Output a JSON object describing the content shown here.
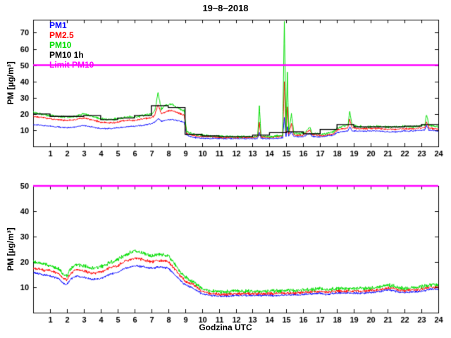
{
  "title": "19–8–2018",
  "xlabel": "Godzina UTC",
  "ylabel": "PM [µg/m³]",
  "legend": [
    {
      "label": "PM1",
      "color": "#0000ff"
    },
    {
      "label": "PM2.5",
      "color": "#ff0000"
    },
    {
      "label": "PM10",
      "color": "#00dd00"
    },
    {
      "label": "PM10 1h",
      "color": "#000000"
    },
    {
      "label": "Limit PM10",
      "color": "#ff00ff"
    }
  ],
  "chart_data": [
    {
      "type": "line",
      "title": "19–8–2018",
      "xlabel": "",
      "ylabel": "PM [µg/m³]",
      "xlim": [
        0,
        24
      ],
      "ylim": [
        0,
        78
      ],
      "xticks": [
        1,
        2,
        3,
        4,
        5,
        6,
        7,
        8,
        9,
        10,
        11,
        12,
        13,
        14,
        15,
        16,
        17,
        18,
        19,
        20,
        21,
        22,
        23,
        24
      ],
      "yticks": [
        10,
        20,
        30,
        40,
        50,
        60,
        70
      ],
      "limit": 50,
      "limit_color": "#ff00ff",
      "seed": 11,
      "x": [
        0,
        0.5,
        1,
        1.5,
        2,
        2.5,
        3,
        3.5,
        4,
        4.5,
        5,
        5.5,
        6,
        6.5,
        7,
        7.2,
        7.4,
        7.6,
        7.8,
        8,
        8.25,
        8.5,
        8.75,
        8.95,
        9.1,
        9.5,
        10,
        10.5,
        11,
        11.5,
        12,
        12.5,
        13,
        13.3,
        13.4,
        13.5,
        14,
        14.5,
        14.78,
        14.88,
        14.98,
        15.06,
        15.14,
        15.3,
        15.45,
        15.6,
        16,
        16.4,
        16.55,
        16.7,
        17,
        17.4,
        17.8,
        18,
        18.3,
        18.65,
        18.75,
        18.9,
        19.2,
        19.6,
        20,
        20.5,
        21,
        21.5,
        22,
        22.5,
        23,
        23.2,
        23.3,
        23.45,
        24
      ],
      "series": [
        {
          "name": "PM1",
          "color": "#0000ff",
          "noise": 0.5,
          "y": [
            13.5,
            13,
            12.5,
            12,
            11.5,
            12,
            13,
            12,
            11,
            11,
            11.5,
            12,
            12.5,
            13,
            14,
            15,
            17,
            15.5,
            16,
            16.5,
            16.5,
            16,
            15.5,
            15,
            7,
            5.5,
            5,
            5,
            5,
            4.8,
            4.8,
            4.8,
            4.8,
            5,
            9,
            5,
            4.8,
            5,
            5.5,
            18,
            6.5,
            12,
            6.5,
            9,
            6,
            6,
            6,
            8,
            6,
            6,
            5.8,
            6.5,
            7,
            8.5,
            9,
            9.5,
            12,
            9.5,
            9.5,
            9.5,
            9.5,
            9.5,
            9,
            9,
            9.5,
            9.5,
            10,
            10,
            13,
            10,
            9.5
          ]
        },
        {
          "name": "PM2.5",
          "color": "#ff0000",
          "noise": 0.7,
          "y": [
            18.5,
            18,
            17,
            16.5,
            16,
            16.5,
            17.5,
            16.5,
            15,
            14.5,
            15,
            16,
            16,
            17,
            17.5,
            19,
            26,
            20,
            21,
            22,
            22,
            21,
            20,
            19,
            8,
            6.5,
            6,
            6,
            5.5,
            5.5,
            5.5,
            5.5,
            5.5,
            6,
            15,
            6,
            5.5,
            6,
            6.5,
            40,
            8,
            25,
            8,
            14,
            7,
            7,
            7,
            10,
            7,
            7,
            6.5,
            7,
            8,
            10,
            11,
            11.5,
            17,
            11.5,
            11,
            11,
            11,
            11,
            10.5,
            10.5,
            11,
            11,
            11.5,
            11.5,
            15,
            11.5,
            10.5
          ]
        },
        {
          "name": "PM10",
          "color": "#00dd00",
          "noise": 0.9,
          "y": [
            21,
            20,
            19,
            18.5,
            18,
            18.5,
            20,
            18.5,
            17,
            16.5,
            17,
            18,
            18,
            19,
            20,
            22,
            33,
            23,
            25,
            26,
            26,
            24,
            23,
            22,
            9,
            7.5,
            7,
            6.5,
            6.5,
            6,
            6,
            6,
            6,
            6.5,
            25,
            6.5,
            6,
            6.5,
            7,
            77,
            10,
            45,
            9,
            20,
            8,
            8,
            8,
            12,
            8,
            8,
            7.5,
            8,
            9,
            11,
            12.5,
            13,
            22,
            13,
            12.5,
            12,
            12,
            12.5,
            12,
            12,
            12.5,
            12,
            13,
            13,
            20,
            13,
            12
          ]
        },
        {
          "name": "PM10 1h",
          "color": "#000000",
          "step": true,
          "values": [
            20,
            18.5,
            18.5,
            19,
            16.5,
            17.5,
            19,
            25,
            24,
            7.5,
            6.5,
            6,
            6,
            7,
            8.5,
            9,
            7.8,
            10.5,
            13.5,
            12,
            12,
            12,
            12.5,
            13.5
          ]
        }
      ]
    },
    {
      "type": "line",
      "title": "",
      "xlabel": "Godzina UTC",
      "ylabel": "PM [µg/m³]",
      "xlim": [
        0,
        24
      ],
      "ylim": [
        0,
        50
      ],
      "xticks": [
        1,
        2,
        3,
        4,
        5,
        6,
        7,
        8,
        9,
        10,
        11,
        12,
        13,
        14,
        15,
        16,
        17,
        18,
        19,
        20,
        21,
        22,
        23,
        24
      ],
      "yticks": [
        10,
        20,
        30,
        40,
        50
      ],
      "limit": 50,
      "limit_color": "#ff00ff",
      "seed": 77,
      "x": [
        0,
        0.5,
        1,
        1.5,
        1.8,
        2,
        2.2,
        2.5,
        3,
        3.5,
        4,
        4.5,
        5,
        5.5,
        6,
        6.5,
        7,
        7.5,
        8,
        8.3,
        8.6,
        9,
        9.5,
        10,
        10.5,
        11,
        11.5,
        12,
        12.5,
        13,
        13.5,
        14,
        14.5,
        15,
        15.5,
        16,
        16.5,
        17,
        17.3,
        17.6,
        18,
        18.5,
        19,
        19.5,
        20,
        20.5,
        21,
        21.3,
        21.6,
        22,
        22.5,
        23,
        23.5,
        24
      ],
      "series": [
        {
          "name": "PM1",
          "color": "#0000ff",
          "noise": 0.5,
          "y": [
            16,
            15,
            14.5,
            13.5,
            11.5,
            11,
            13,
            14.5,
            14,
            13,
            13.5,
            15,
            16,
            17.5,
            18.5,
            18,
            17.5,
            18,
            17.5,
            15.5,
            13.5,
            11,
            9.5,
            7.5,
            6.8,
            6.5,
            6.5,
            6.8,
            6.8,
            6.8,
            6.8,
            6.8,
            6.8,
            7,
            7,
            7.2,
            7.4,
            7.7,
            7.2,
            7.4,
            7.7,
            7.7,
            7.7,
            7.7,
            7.9,
            8.2,
            9,
            8.7,
            8.2,
            7.9,
            8.2,
            8.4,
            9.2,
            9.2
          ]
        },
        {
          "name": "PM2.5",
          "color": "#ff0000",
          "noise": 0.7,
          "y": [
            17.5,
            17,
            16.5,
            15.5,
            13.5,
            13,
            15,
            17,
            16.5,
            15.5,
            16,
            17.5,
            18.5,
            20.5,
            21.5,
            21,
            20,
            20.5,
            20,
            18,
            15.5,
            12.5,
            11,
            8.5,
            7.5,
            7.3,
            7.3,
            7.5,
            7.5,
            7.5,
            7.5,
            7.5,
            7.5,
            7.7,
            7.7,
            8,
            8.2,
            8.5,
            8,
            8.2,
            8.5,
            8.5,
            8.5,
            8.5,
            8.7,
            9,
            9.7,
            9.5,
            9,
            8.7,
            9,
            9.2,
            10,
            10
          ]
        },
        {
          "name": "PM10",
          "color": "#00dd00",
          "noise": 0.9,
          "y": [
            20,
            19.5,
            18.5,
            17.5,
            15,
            14.5,
            17,
            19,
            18.5,
            17.5,
            18,
            19.5,
            21,
            23,
            24.5,
            23.5,
            22.5,
            23,
            22.5,
            20,
            17,
            14,
            12,
            9.5,
            8.5,
            8.3,
            8.3,
            8.5,
            8.5,
            8.5,
            8.5,
            8.5,
            8.5,
            8.7,
            8.7,
            9,
            9.2,
            9.5,
            9,
            9.2,
            9.5,
            9.5,
            9.5,
            9.5,
            9.7,
            10,
            10.8,
            10.5,
            10,
            9.7,
            10,
            10.2,
            11,
            11
          ]
        }
      ]
    }
  ]
}
